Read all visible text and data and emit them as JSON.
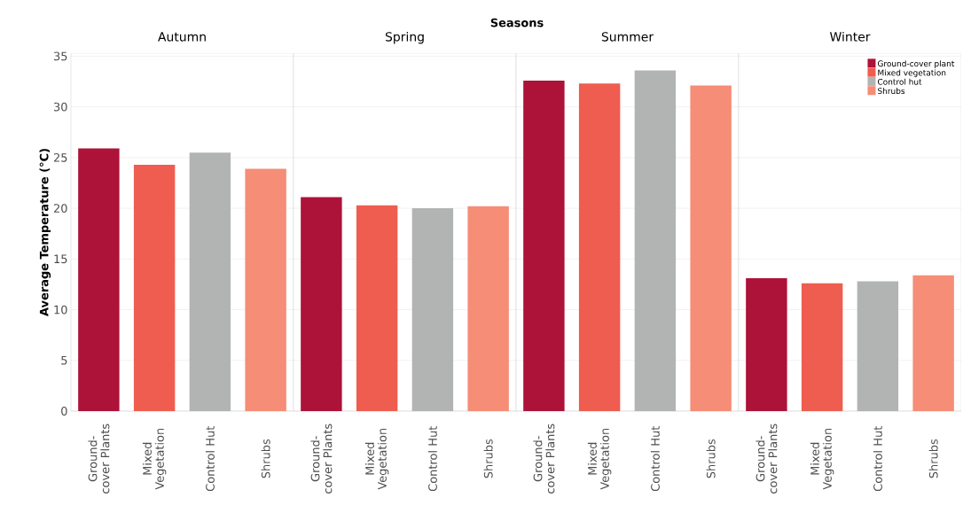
{
  "chart_data": [
    {
      "type": "bar",
      "title": "Autumn",
      "ylabel": "Average Temperature (°C)",
      "annotations": [
        "Seasons"
      ],
      "categories": [
        "Ground-cover Plants",
        "Mixed Vegetation",
        "Control Hut",
        "Shrubs"
      ],
      "series": [
        {
          "color": "#ad1238",
          "values": [
            25.9,
            null,
            null,
            null
          ]
        },
        {
          "color": "#ee5d4f",
          "values": [
            null,
            24.3,
            null,
            null
          ]
        },
        {
          "color": "#b2b4b4",
          "values": [
            null,
            null,
            25.5,
            null
          ]
        },
        {
          "color": "#f58d77",
          "values": [
            null,
            null,
            null,
            23.9
          ]
        }
      ],
      "ylim": [
        0,
        35.3
      ],
      "yticks": [
        0,
        5,
        10,
        15,
        20,
        25,
        30,
        35
      ],
      "grid": "y"
    },
    {
      "type": "bar",
      "title": "Spring",
      "categories": [
        "Ground-cover Plants",
        "Mixed Vegetation",
        "Control Hut",
        "Shrubs"
      ],
      "series": [
        {
          "color": "#ad1238",
          "values": [
            21.1,
            null,
            null,
            null
          ]
        },
        {
          "color": "#ee5d4f",
          "values": [
            null,
            20.3,
            null,
            null
          ]
        },
        {
          "color": "#b2b4b4",
          "values": [
            null,
            null,
            20.0,
            null
          ]
        },
        {
          "color": "#f58d77",
          "values": [
            null,
            null,
            null,
            20.2
          ]
        }
      ],
      "ylim": [
        0,
        35.3
      ],
      "yticks": [
        0,
        5,
        10,
        15,
        20,
        25,
        30,
        35
      ],
      "grid": "y",
      "tick_labels": "x"
    },
    {
      "type": "bar",
      "title": "Summer",
      "categories": [
        "Ground-cover Plants",
        "Mixed Vegetation",
        "Control Hut",
        "Shrubs"
      ],
      "series": [
        {
          "color": "#ad1238",
          "values": [
            32.6,
            null,
            null,
            null
          ]
        },
        {
          "color": "#ee5d4f",
          "values": [
            null,
            32.3,
            null,
            null
          ]
        },
        {
          "color": "#b2b4b4",
          "values": [
            null,
            null,
            33.6,
            null
          ]
        },
        {
          "color": "#f58d77",
          "values": [
            null,
            null,
            null,
            32.1
          ]
        }
      ],
      "ylim": [
        0,
        35.3
      ],
      "yticks": [
        0,
        5,
        10,
        15,
        20,
        25,
        30,
        35
      ],
      "grid": "y",
      "tick_labels": "x"
    },
    {
      "type": "bar",
      "title": "Winter",
      "categories": [
        "Ground-cover Plants",
        "Mixed Vegetation",
        "Control Hut",
        "Shrubs"
      ],
      "series": [
        {
          "name": "Ground-cover plant",
          "color": "#ad1238",
          "values": [
            13.1,
            null,
            null,
            null
          ]
        },
        {
          "name": "Mixed vegetation",
          "color": "#ee5d4f",
          "values": [
            null,
            12.6,
            null,
            null
          ]
        },
        {
          "name": "Control hut",
          "color": "#b2b4b4",
          "values": [
            null,
            null,
            12.8,
            null
          ]
        },
        {
          "name": "Shrubs",
          "color": "#f58d77",
          "values": [
            null,
            null,
            null,
            13.4
          ]
        }
      ],
      "ylim": [
        0,
        35.3
      ],
      "yticks": [
        0,
        5,
        10,
        15,
        20,
        25,
        30,
        35
      ],
      "grid": "y",
      "tick_labels": "x",
      "legend": "top right"
    }
  ]
}
